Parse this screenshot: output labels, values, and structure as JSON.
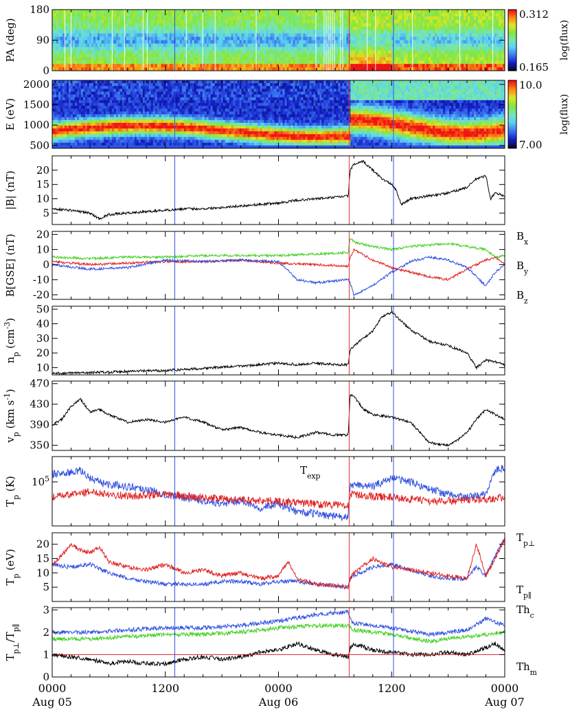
{
  "figure": {
    "xaxis": {
      "range_hours": [
        0,
        48
      ],
      "ticks": [
        {
          "hour": 0,
          "time": "0000",
          "date": "Aug 05"
        },
        {
          "hour": 12,
          "time": "1200",
          "date": ""
        },
        {
          "hour": 24,
          "time": "0000",
          "date": "Aug 06"
        },
        {
          "hour": 36,
          "time": "1200",
          "date": ""
        },
        {
          "hour": 48,
          "time": "0000",
          "date": "Aug 07"
        }
      ]
    },
    "event_lines": [
      {
        "hour": 13.0,
        "color": "#3050e0"
      },
      {
        "hour": 31.5,
        "color": "#e03030"
      },
      {
        "hour": 36.2,
        "color": "#3050e0"
      }
    ]
  },
  "chart_data": [
    {
      "type": "heatmap",
      "ylabel": "PA (deg)",
      "ylim": [
        0,
        180
      ],
      "yticks": [
        "180",
        "90",
        "0"
      ],
      "colorbar": {
        "max": "0.312",
        "min": "0.165",
        "label": "log(flux)"
      }
    },
    {
      "type": "heatmap",
      "ylabel": "E (eV)",
      "ylim": [
        430,
        2100
      ],
      "yticks": [
        "2000",
        "1500",
        "1000",
        "500"
      ],
      "colorbar": {
        "max": "10.0",
        "min": "7.00",
        "label": "log(flux)"
      }
    },
    {
      "type": "line",
      "ylabel": "|B| (nT)",
      "ylim": [
        1,
        25
      ],
      "yticks": [
        "20",
        "15",
        "10",
        "5"
      ],
      "series": [
        {
          "name": "",
          "color": "#000000",
          "x": [
            0,
            2,
            4,
            5,
            6,
            8,
            10,
            12,
            14,
            16,
            18,
            20,
            22,
            24,
            26,
            28,
            30,
            31.4,
            31.6,
            32,
            33,
            34,
            35,
            36,
            36.5,
            37,
            38,
            40,
            42,
            44,
            45,
            46,
            46.5,
            47,
            48
          ],
          "y": [
            6.5,
            6,
            5,
            3,
            4.5,
            5,
            5.5,
            6,
            6.5,
            6.5,
            7,
            7.5,
            8,
            8.5,
            9.5,
            10,
            10.5,
            11,
            20,
            22,
            23,
            20,
            17,
            15,
            13,
            8,
            10,
            11,
            12,
            14,
            17,
            18,
            10,
            12,
            11
          ]
        }
      ]
    },
    {
      "type": "line",
      "ylabel": "B[GSE] (nT)",
      "ylim": [
        -23,
        22
      ],
      "yticks": [
        "20",
        "10",
        "0",
        "-10",
        "-20"
      ],
      "series": [
        {
          "name": "B_x",
          "color": "#e02020",
          "x": [
            0,
            4,
            8,
            12,
            16,
            20,
            24,
            28,
            31.4,
            31.6,
            32,
            34,
            36,
            38,
            40,
            42,
            44,
            46,
            47,
            48
          ],
          "y": [
            2,
            0,
            1,
            2,
            2,
            3,
            1,
            0,
            -1,
            5,
            10,
            3,
            -2,
            -5,
            -8,
            -10,
            -3,
            3,
            5,
            0
          ]
        },
        {
          "name": "B_y",
          "color": "#40d020",
          "x": [
            0,
            4,
            8,
            12,
            16,
            20,
            24,
            28,
            31.4,
            31.6,
            32,
            34,
            36,
            38,
            40,
            42,
            44,
            46,
            47,
            48
          ],
          "y": [
            5,
            4,
            5,
            5,
            6,
            6,
            6,
            7,
            8,
            18,
            15,
            12,
            10,
            12,
            13,
            14,
            12,
            10,
            5,
            6
          ]
        },
        {
          "name": "B_z",
          "color": "#3050e0",
          "x": [
            0,
            4,
            8,
            12,
            16,
            20,
            24,
            26,
            28,
            31.4,
            31.6,
            32,
            34,
            36,
            38,
            40,
            42,
            44,
            46,
            47,
            48
          ],
          "y": [
            0,
            -3,
            -2,
            3,
            2,
            3,
            2,
            -10,
            -12,
            -10,
            -12,
            -20,
            -14,
            -5,
            2,
            5,
            3,
            -2,
            -14,
            -5,
            0
          ]
        }
      ]
    },
    {
      "type": "line",
      "ylabel": "n_p (cm^-3)",
      "ylim": [
        5,
        52
      ],
      "yticks": [
        "50",
        "40",
        "30",
        "20",
        "10"
      ],
      "series": [
        {
          "name": "",
          "color": "#000000",
          "x": [
            0,
            4,
            8,
            12,
            16,
            20,
            24,
            26,
            28,
            30,
            31.4,
            31.6,
            32,
            34,
            35,
            36,
            37,
            38,
            40,
            42,
            44,
            45,
            46,
            47,
            48
          ],
          "y": [
            6,
            6.5,
            7.5,
            8,
            9.5,
            11,
            13,
            12,
            13,
            12,
            12,
            22,
            25,
            35,
            45,
            48,
            42,
            36,
            28,
            25,
            20,
            10,
            15,
            14,
            12
          ]
        }
      ]
    },
    {
      "type": "line",
      "ylabel": "v_p (km s^-1)",
      "ylim": [
        340,
        475
      ],
      "yticks": [
        "470",
        "430",
        "390",
        "350"
      ],
      "series": [
        {
          "name": "",
          "color": "#000000",
          "x": [
            0,
            1,
            2,
            3,
            4,
            5,
            6,
            8,
            10,
            12,
            14,
            16,
            18,
            20,
            22,
            24,
            26,
            28,
            30,
            31.4,
            31.6,
            32,
            33,
            34,
            36,
            38,
            40,
            42,
            43,
            44,
            45,
            46,
            47,
            48
          ],
          "y": [
            390,
            400,
            425,
            440,
            415,
            420,
            410,
            395,
            400,
            395,
            405,
            395,
            380,
            385,
            375,
            370,
            365,
            375,
            370,
            370,
            450,
            445,
            420,
            410,
            405,
            395,
            355,
            350,
            360,
            375,
            400,
            420,
            410,
            400
          ]
        }
      ]
    },
    {
      "type": "line",
      "ylabel": "T_p (K)",
      "ylim": [
        36000,
        180000
      ],
      "yscale": "log",
      "yticks": [
        "10^5"
      ],
      "annotations": [
        {
          "text": "T_exp",
          "color": "#e02020"
        }
      ],
      "series": [
        {
          "name": "",
          "color": "#3050e0",
          "x": [
            0,
            2,
            3,
            4,
            5,
            6,
            8,
            10,
            12,
            14,
            16,
            18,
            20,
            22,
            24,
            26,
            28,
            30,
            31.4,
            31.6,
            32,
            34,
            36,
            38,
            40,
            42,
            44,
            46,
            47,
            48
          ],
          "y": [
            120000,
            125000,
            130000,
            110000,
            100000,
            95000,
            90000,
            85000,
            75000,
            70000,
            65000,
            60000,
            65000,
            55000,
            60000,
            50000,
            48000,
            45000,
            44000,
            90000,
            95000,
            90000,
            110000,
            100000,
            85000,
            75000,
            70000,
            75000,
            130000,
            140000
          ]
        },
        {
          "name": "T_exp",
          "color": "#e02020",
          "x": [
            0,
            2,
            4,
            8,
            12,
            16,
            20,
            24,
            28,
            31.4,
            31.6,
            34,
            36,
            40,
            44,
            48
          ],
          "y": [
            70000,
            75000,
            80000,
            72000,
            75000,
            70000,
            66000,
            64000,
            60000,
            58000,
            75000,
            72000,
            70000,
            64000,
            65000,
            70000
          ]
        }
      ]
    },
    {
      "type": "line",
      "ylabel": "T_p (eV)",
      "ylim": [
        0,
        24
      ],
      "yticks": [
        "20",
        "15",
        "10",
        "5"
      ],
      "legend": [
        {
          "text": "T_p⊥",
          "color": "#3050e0"
        },
        {
          "text": "T_p∥",
          "color": "#e02020"
        }
      ],
      "series": [
        {
          "name": "T_p⊥",
          "color": "#3050e0",
          "x": [
            0,
            2,
            4,
            6,
            8,
            10,
            12,
            14,
            16,
            18,
            20,
            22,
            24,
            26,
            28,
            30,
            31.4,
            31.6,
            32,
            34,
            36,
            38,
            40,
            42,
            44,
            45,
            46,
            47,
            48
          ],
          "y": [
            13,
            12,
            13,
            10,
            8,
            7,
            6,
            6,
            6,
            7,
            7,
            6,
            7,
            7,
            6,
            5.5,
            5,
            8,
            9,
            12,
            13,
            11,
            9,
            8,
            8,
            12,
            9,
            16,
            22
          ]
        },
        {
          "name": "T_p∥",
          "color": "#e02020",
          "x": [
            0,
            1,
            2,
            3,
            4,
            5,
            6,
            8,
            10,
            12,
            14,
            16,
            18,
            20,
            22,
            24,
            25,
            26,
            28,
            30,
            31.4,
            31.6,
            32,
            34,
            36,
            38,
            40,
            42,
            44,
            45,
            46,
            47,
            48
          ],
          "y": [
            13,
            16,
            20,
            18,
            17,
            19,
            14,
            12,
            11,
            13,
            10,
            11,
            9,
            10,
            8,
            9,
            14,
            8,
            6,
            5.5,
            5,
            8,
            10,
            15,
            12,
            11,
            10,
            9,
            8,
            20,
            9,
            15,
            22
          ]
        }
      ]
    },
    {
      "type": "line",
      "ylabel": "T_p⊥/T_p∥",
      "ylim": [
        0,
        3.1
      ],
      "yticks": [
        "3",
        "2",
        "1",
        "0"
      ],
      "reference_line": {
        "y": 1,
        "color": "#e02020"
      },
      "legend": [
        {
          "text": "Th_c",
          "color": "#40d020"
        },
        {
          "text": "Th_m",
          "color": "#3050e0"
        }
      ],
      "series": [
        {
          "name": "",
          "color": "#000000",
          "x": [
            0,
            2,
            4,
            6,
            8,
            10,
            12,
            14,
            16,
            18,
            20,
            22,
            24,
            26,
            28,
            30,
            31.4,
            31.6,
            32,
            34,
            36,
            38,
            40,
            42,
            44,
            46,
            47,
            48
          ],
          "y": [
            1,
            0.9,
            0.8,
            0.6,
            0.7,
            0.6,
            0.6,
            0.8,
            0.9,
            0.8,
            0.9,
            1.1,
            1.2,
            1.5,
            1.2,
            1,
            0.9,
            1.3,
            1.5,
            1.2,
            1.1,
            1.0,
            1.0,
            1.1,
            1.0,
            1.3,
            1.5,
            1.2
          ]
        },
        {
          "name": "Th_c",
          "color": "#40d020",
          "x": [
            0,
            4,
            8,
            12,
            16,
            20,
            24,
            28,
            31.4,
            31.6,
            32,
            36,
            40,
            44,
            48
          ],
          "y": [
            1.7,
            1.7,
            1.8,
            1.9,
            1.9,
            2.0,
            2.2,
            2.3,
            2.3,
            2.2,
            2.1,
            1.9,
            1.6,
            1.8,
            2.0
          ]
        },
        {
          "name": "Th_m",
          "color": "#3050e0",
          "x": [
            0,
            4,
            8,
            12,
            16,
            20,
            24,
            28,
            31.4,
            31.6,
            32,
            36,
            40,
            44,
            46,
            48
          ],
          "y": [
            2.0,
            2.0,
            2.1,
            2.2,
            2.2,
            2.3,
            2.5,
            2.8,
            2.9,
            2.6,
            2.4,
            2.2,
            1.9,
            2.1,
            2.6,
            2.3
          ]
        }
      ]
    }
  ]
}
